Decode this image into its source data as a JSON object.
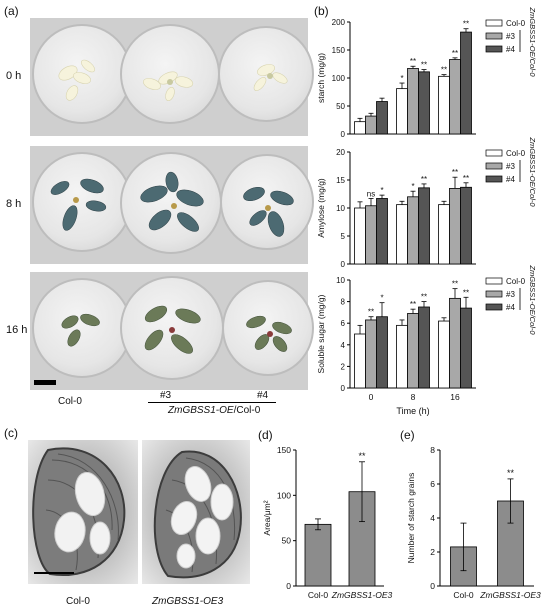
{
  "panels": {
    "a": "(a)",
    "b": "(b)",
    "c": "(c)",
    "d": "(d)",
    "e": "(e)"
  },
  "panel_a": {
    "rows": [
      "0 h",
      "8 h",
      "16 h"
    ],
    "col0_label": "Col-0",
    "line3_label": "#3",
    "line4_label": "#4",
    "group_label_gene": "ZmGBSS1-OE",
    "group_label_suffix": "/Col-0"
  },
  "legend": {
    "items": [
      "Col-0",
      "#3",
      "#4"
    ],
    "group_label": "ZmGBSS1-OE/Col-0",
    "colors": [
      "#ffffff",
      "#a8a8a8",
      "#555555"
    ]
  },
  "panel_c": {
    "label_left": "Col-0",
    "label_right": "ZmGBSS1-OE3"
  },
  "chart_data": [
    {
      "type": "bar",
      "panel": "b-top",
      "categories": [
        "0",
        "8",
        "16"
      ],
      "series": [
        {
          "name": "Col-0",
          "values": [
            22,
            81,
            103
          ],
          "errors": [
            6,
            10,
            3
          ]
        },
        {
          "name": "#3",
          "values": [
            32,
            117,
            133
          ],
          "errors": [
            5,
            4,
            3
          ]
        },
        {
          "name": "#4",
          "values": [
            58,
            111,
            182
          ],
          "errors": [
            6,
            4,
            6
          ]
        }
      ],
      "significance": [
        [
          "",
          "*",
          "**"
        ],
        [
          "",
          "**",
          "**"
        ],
        [
          "",
          "**",
          "**"
        ]
      ],
      "ylabel": "starch (mg/g)",
      "yticks": [
        0,
        50,
        100,
        150,
        200
      ],
      "ylim": [
        0,
        200
      ]
    },
    {
      "type": "bar",
      "panel": "b-middle",
      "categories": [
        "0",
        "8",
        "16"
      ],
      "series": [
        {
          "name": "Col-0",
          "values": [
            10.0,
            10.6,
            10.6
          ],
          "errors": [
            1.1,
            0.6,
            0.6
          ]
        },
        {
          "name": "#3",
          "values": [
            10.4,
            12.0,
            13.5
          ],
          "errors": [
            1.3,
            1.0,
            2.0
          ]
        },
        {
          "name": "#4",
          "values": [
            11.7,
            13.6,
            13.7
          ],
          "errors": [
            0.6,
            0.7,
            0.8
          ]
        }
      ],
      "significance": [
        [
          "",
          "",
          ""
        ],
        [
          "ns",
          "*",
          "**"
        ],
        [
          "*",
          "**",
          "**"
        ]
      ],
      "ylabel": "Amylose (mg/g)",
      "yticks": [
        0,
        5,
        10,
        15,
        20
      ],
      "ylim": [
        0,
        20
      ]
    },
    {
      "type": "bar",
      "panel": "b-bottom",
      "categories": [
        "0",
        "8",
        "16"
      ],
      "series": [
        {
          "name": "Col-0",
          "values": [
            5.0,
            5.8,
            6.2
          ],
          "errors": [
            0.8,
            0.5,
            0.3
          ]
        },
        {
          "name": "#3",
          "values": [
            6.3,
            6.9,
            8.3
          ],
          "errors": [
            0.3,
            0.4,
            0.9
          ]
        },
        {
          "name": "#4",
          "values": [
            6.6,
            7.5,
            7.4
          ],
          "errors": [
            1.3,
            0.5,
            1.0
          ]
        }
      ],
      "significance": [
        [
          "",
          "",
          ""
        ],
        [
          "**",
          "**",
          "**"
        ],
        [
          "*",
          "**",
          "**"
        ]
      ],
      "ylabel": "Soluble sugar (mg/g)",
      "xlabel": "Time (h)",
      "yticks": [
        0,
        2,
        4,
        6,
        8,
        10
      ],
      "ylim": [
        0,
        10
      ]
    },
    {
      "type": "bar",
      "panel": "d",
      "categories": [
        "Col-0",
        "ZmGBSS1-OE3"
      ],
      "values": [
        68,
        104
      ],
      "errors": [
        6,
        33
      ],
      "significance": [
        "",
        "**"
      ],
      "ylabel": "Area/μm²",
      "yticks": [
        0,
        50,
        100,
        150
      ],
      "ylim": [
        0,
        150
      ]
    },
    {
      "type": "bar",
      "panel": "e",
      "categories": [
        "Col-0",
        "ZmGBSS1-OE3"
      ],
      "values": [
        2.3,
        5.0
      ],
      "errors": [
        1.4,
        1.3
      ],
      "significance": [
        "",
        "**"
      ],
      "ylabel": "Number of starch grains",
      "yticks": [
        0,
        2,
        4,
        6,
        8
      ],
      "ylim": [
        0,
        8
      ]
    }
  ]
}
